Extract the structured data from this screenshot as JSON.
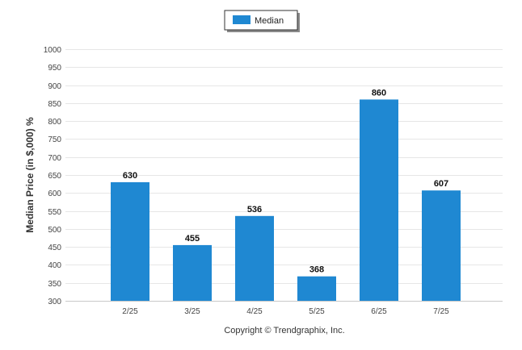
{
  "chart_data": {
    "type": "bar",
    "categories": [
      "2/25",
      "3/25",
      "4/25",
      "5/25",
      "6/25",
      "7/25"
    ],
    "series": [
      {
        "name": "Median",
        "values": [
          630,
          455,
          536,
          368,
          860,
          607
        ],
        "color": "#1f88d2"
      }
    ],
    "ylabel": "Median Price (in $,000) %",
    "xlabel": "",
    "ylim": [
      300,
      1000
    ],
    "yticks": [
      300,
      350,
      400,
      450,
      500,
      550,
      600,
      650,
      700,
      750,
      800,
      850,
      900,
      950,
      1000
    ],
    "grid": true,
    "legend_position": "top-center",
    "data_labels": true
  },
  "footer": {
    "copyright": "Copyright © Trendgraphix, Inc."
  }
}
